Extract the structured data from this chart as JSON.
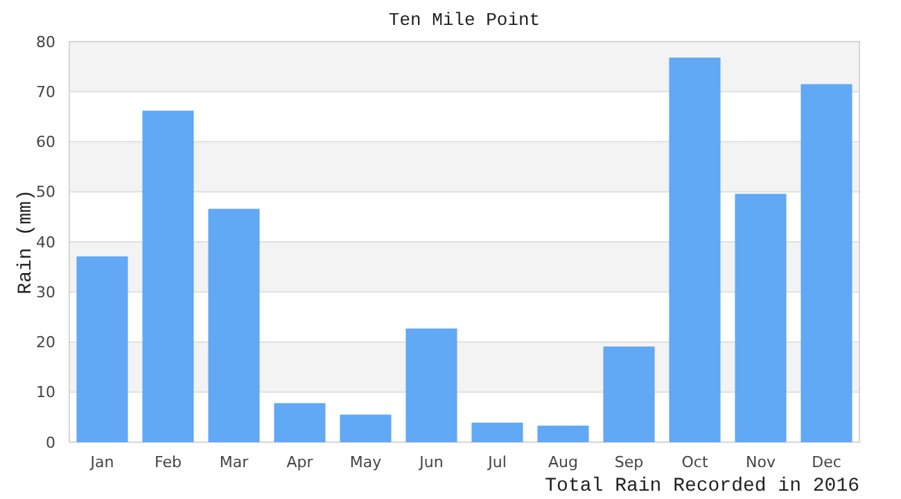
{
  "chart_data": {
    "type": "bar",
    "title": "Ten Mile Point",
    "ylabel": "Rain (mm)",
    "xlabel": "Total Rain Recorded in 2016",
    "categories": [
      "Jan",
      "Feb",
      "Mar",
      "Apr",
      "May",
      "Jun",
      "Jul",
      "Aug",
      "Sep",
      "Oct",
      "Nov",
      "Dec"
    ],
    "values": [
      37.1,
      66.2,
      46.6,
      7.8,
      5.5,
      22.7,
      3.9,
      3.3,
      19.1,
      76.8,
      49.6,
      71.5
    ],
    "color": "#61a8f5",
    "ylim": [
      0,
      80
    ],
    "yticks": [
      0,
      10,
      20,
      30,
      40,
      50,
      60,
      70,
      80
    ],
    "grid": "y"
  }
}
